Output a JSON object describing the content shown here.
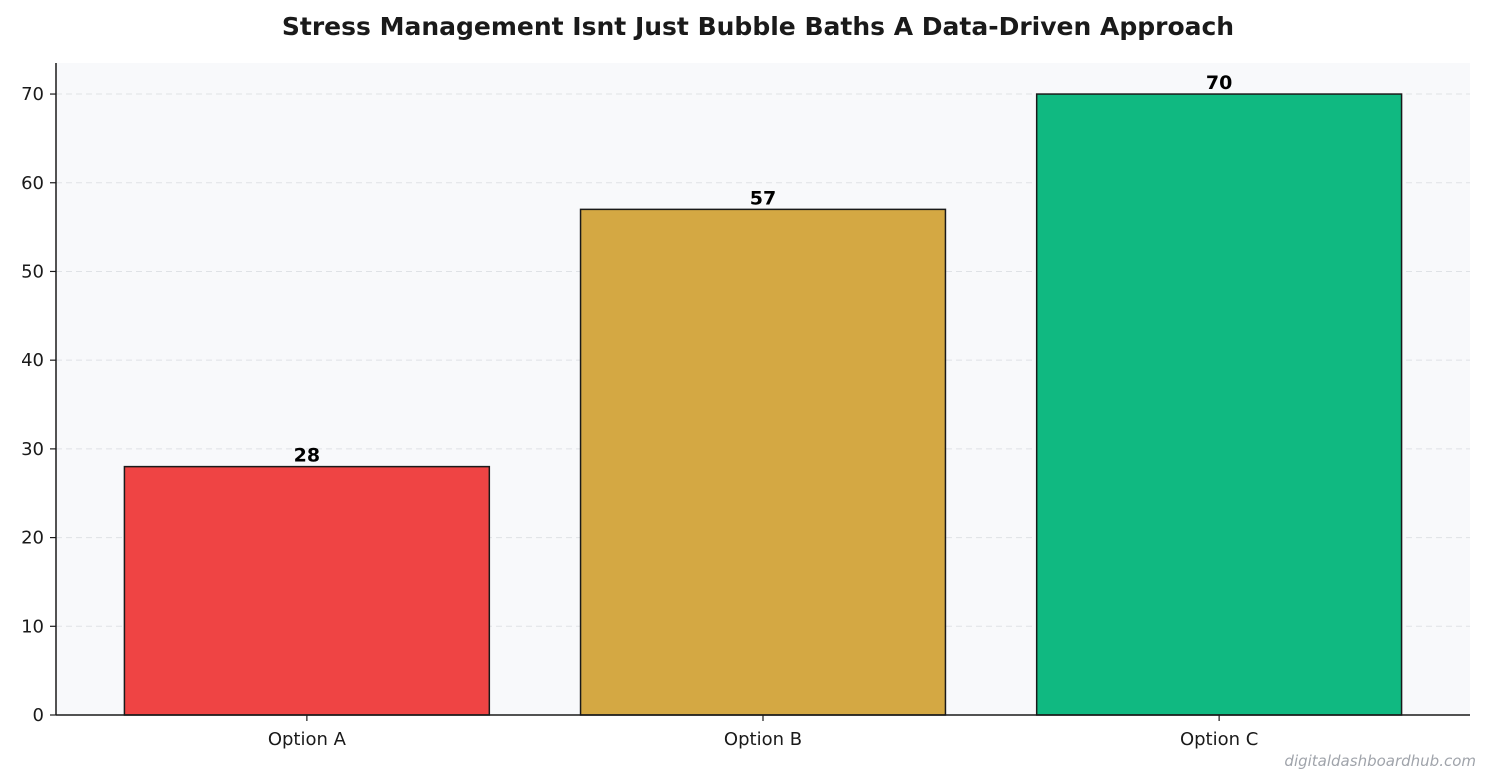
{
  "chart_data": {
    "type": "bar",
    "title": "Stress Management Isnt Just Bubble Baths  A Data-Driven Approach",
    "categories": [
      "Option A",
      "Option B",
      "Option C"
    ],
    "values": [
      28,
      57,
      70
    ],
    "colors": [
      "#ef4444",
      "#d4a843",
      "#10b981"
    ],
    "data_labels": [
      "28",
      "57",
      "70"
    ],
    "xlabel": "",
    "ylabel": "",
    "ylim": [
      0,
      73.5
    ],
    "yticks": [
      0,
      10,
      20,
      30,
      40,
      50,
      60,
      70
    ],
    "ytick_labels": [
      "0",
      "10",
      "20",
      "30",
      "40",
      "50",
      "60",
      "70"
    ],
    "grid": true,
    "grid_axis": "y",
    "plot_background": "#f8f9fb",
    "bar_edge_color": "#1a1a1a",
    "watermark": "digitaldashboardhub.com"
  }
}
